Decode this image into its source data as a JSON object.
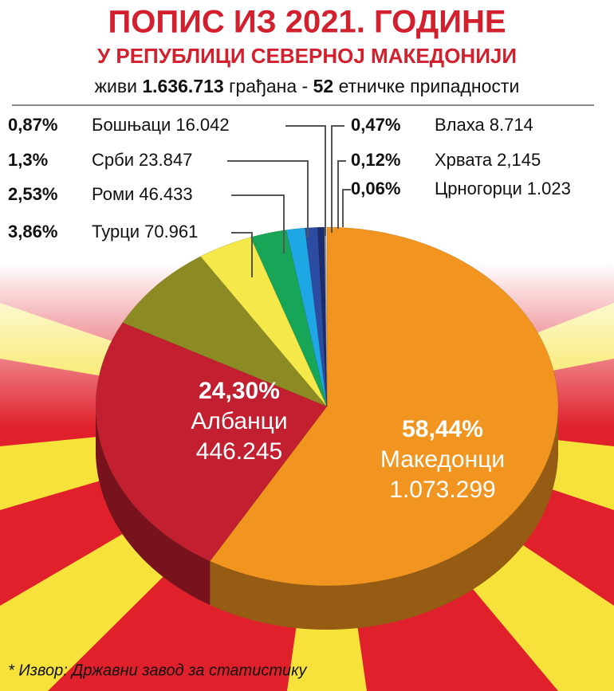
{
  "chart_data": {
    "type": "pie",
    "title": "ПОПИС ИЗ 2021. ГОДИНЕ",
    "subtitle": "У РЕПУБЛИЦИ СЕВЕРНОЈ МАКЕДОНИЈИ",
    "summary": [
      "живи",
      "1.636.713",
      "грађана -",
      "52",
      "етничке припадности"
    ],
    "categories": [
      "Македонци",
      "Албанци",
      "Турци",
      "Роми",
      "Срби",
      "Бошњаци",
      "Влаха",
      "Хрвата",
      "Црногорци"
    ],
    "values": [
      58.44,
      24.3,
      3.86,
      2.53,
      1.3,
      0.87,
      0.47,
      0.12,
      0.06
    ],
    "value_labels": [
      "58,44%",
      "24,30%",
      "3,86%",
      "2,53%",
      "1,3%",
      "0,87%",
      "0,47%",
      "0,12%",
      "0,06%"
    ],
    "counts": [
      1073299,
      446245,
      70961,
      46433,
      23847,
      16042,
      8714,
      2145,
      1023
    ],
    "count_labels": [
      "1.073.299",
      "446.245",
      "70.961",
      "46.433",
      "23.847",
      "16.042",
      "8.714",
      "2,145",
      "1.023"
    ],
    "colors": [
      "#f29420",
      "#c21f30",
      "#f4e84a",
      "#17a557",
      "#1ea7e4",
      "#2c4ba3",
      "#1c2a6e",
      "#9a9a9a",
      "#e6e6e6"
    ],
    "rest_color": "#8c8a22",
    "footnote": "* Извор: Државни завод за статистику"
  }
}
